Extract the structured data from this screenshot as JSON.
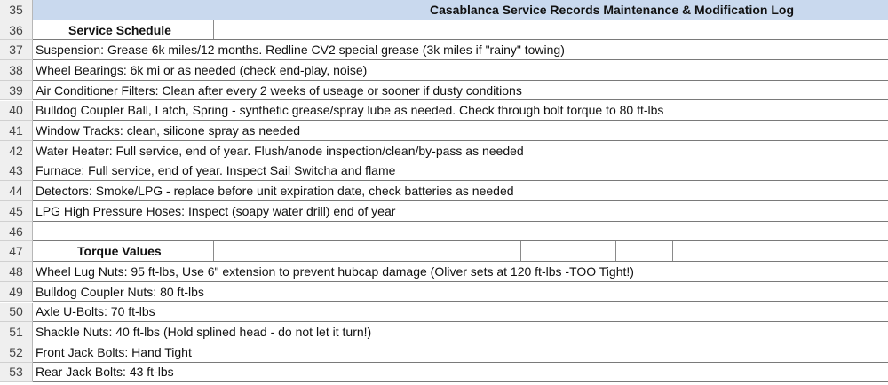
{
  "header": {
    "row": "35",
    "title": "Casablanca Service Records Maintenance & Modification Log"
  },
  "service_schedule": {
    "row": "36",
    "label": "Service Schedule",
    "items": [
      {
        "row": "37",
        "text": "Suspension: Grease 6k miles/12 months. Redline CV2 special grease (3k miles if \"rainy\" towing)"
      },
      {
        "row": "38",
        "text": "Wheel Bearings: 6k mi or as needed (check end-play, noise)"
      },
      {
        "row": "39",
        "text": "Air Conditioner Filters: Clean after every 2 weeks of useage or sooner if dusty conditions"
      },
      {
        "row": "40",
        "text": "Bulldog Coupler Ball, Latch, Spring - synthetic grease/spray lube as needed.  Check through bolt torque to 80 ft-lbs"
      },
      {
        "row": "41",
        "text": "Window Tracks: clean, silicone spray as needed"
      },
      {
        "row": "42",
        "text": "Water Heater:  Full service, end of year. Flush/anode inspection/clean/by-pass as needed"
      },
      {
        "row": "43",
        "text": "Furnace:  Full service, end of year. Inspect Sail Switcha and flame"
      },
      {
        "row": "44",
        "text": "Detectors: Smoke/LPG - replace before unit expiration date, check batteries as needed"
      },
      {
        "row": "45",
        "text": "LPG High Pressure Hoses: Inspect (soapy water drill) end of year"
      }
    ]
  },
  "blank_row": {
    "row": "46"
  },
  "torque_values": {
    "row": "47",
    "label": "Torque Values",
    "items": [
      {
        "row": "48",
        "text": "Wheel Lug Nuts: 95 ft-lbs, Use 6\" extension to prevent hubcap damage (Oliver sets at 120 ft-lbs -TOO Tight!)"
      },
      {
        "row": "49",
        "text": "Bulldog Coupler Nuts: 80 ft-lbs"
      },
      {
        "row": "50",
        "text": "Axle U-Bolts: 70 ft-lbs"
      },
      {
        "row": "51",
        "text": "Shackle Nuts: 40 ft-lbs (Hold splined head - do not let it turn!)"
      },
      {
        "row": "52",
        "text": "Front Jack Bolts:  Hand Tight"
      },
      {
        "row": "53",
        "text": "Rear Jack Bolts: 43 ft-lbs"
      }
    ]
  },
  "colors": {
    "header_band": "#c9d9ee",
    "row_header_bg": "#efefef",
    "grid_line": "#8a8a8a"
  }
}
